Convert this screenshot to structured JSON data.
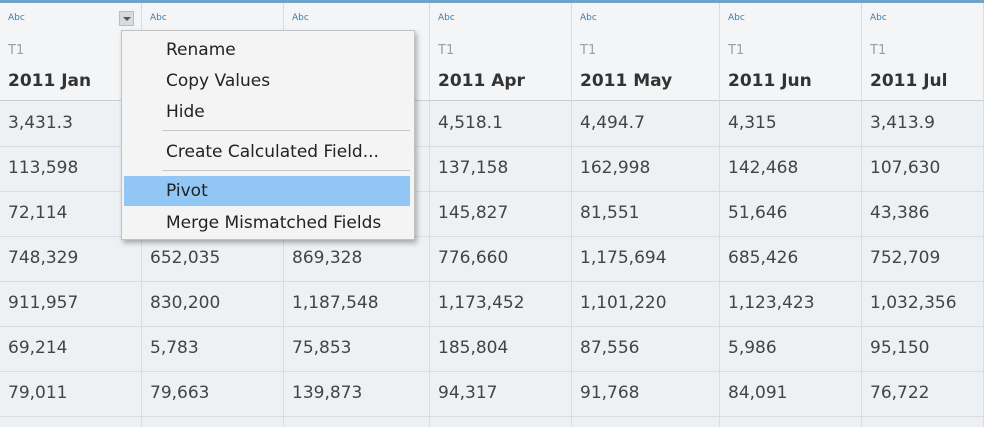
{
  "columns": [
    {
      "type": "Abc",
      "source": "T1",
      "name": "2011 Jan"
    },
    {
      "type": "Abc"
    },
    {
      "type": "Abc"
    },
    {
      "type": "Abc",
      "source": "T1",
      "name": "2011 Apr"
    },
    {
      "type": "Abc",
      "source": "T1",
      "name": "2011 May"
    },
    {
      "type": "Abc",
      "source": "T1",
      "name": "2011 Jun"
    },
    {
      "type": "Abc",
      "source": "T1",
      "name": "2011 Jul"
    }
  ],
  "rows": [
    [
      "3,431.3",
      null,
      null,
      "4,518.1",
      "4,494.7",
      "4,315",
      "3,413.9"
    ],
    [
      "113,598",
      null,
      null,
      "137,158",
      "162,998",
      "142,468",
      "107,630"
    ],
    [
      "72,114",
      null,
      null,
      "145,827",
      "81,551",
      "51,646",
      "43,386"
    ],
    [
      "748,329",
      "652,035",
      "869,328",
      "776,660",
      "1,175,694",
      "685,426",
      "752,709"
    ],
    [
      "911,957",
      "830,200",
      "1,187,548",
      "1,173,452",
      "1,101,220",
      "1,123,423",
      "1,032,356"
    ],
    [
      "69,214",
      "5,783",
      "75,853",
      "185,804",
      "87,556",
      "5,986",
      "95,150"
    ],
    [
      "79,011",
      "79,663",
      "139,873",
      "94,317",
      "91,768",
      "84,091",
      "76,722"
    ]
  ],
  "menu": {
    "items": [
      "Rename",
      "Copy Values",
      "Hide",
      "Create Calculated Field...",
      "Pivot",
      "Merge Mismatched Fields"
    ],
    "highlighted": 4
  }
}
